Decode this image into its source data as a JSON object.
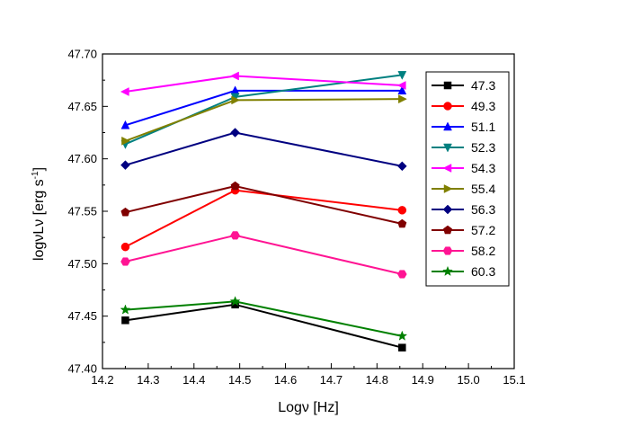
{
  "chart_data": {
    "type": "line",
    "title": "",
    "xlabel": "Logν [Hz]",
    "ylabel_main": "logνLν [erg s",
    "ylabel_sup": "-1",
    "ylabel_end": "]",
    "xlim": [
      14.2,
      15.1
    ],
    "ylim": [
      47.4,
      47.7
    ],
    "xticks": [
      "14.2",
      "14.3",
      "14.4",
      "14.5",
      "14.6",
      "14.7",
      "14.8",
      "14.9",
      "15.0",
      "15.1"
    ],
    "yticks": [
      "47.40",
      "47.45",
      "47.50",
      "47.55",
      "47.60",
      "47.65",
      "47.70"
    ],
    "grid": false,
    "legend_position": "right",
    "x": [
      14.25,
      14.49,
      14.855
    ],
    "series": [
      {
        "name": "47.3",
        "color": "#000000",
        "marker": "square",
        "values": [
          47.446,
          47.461,
          47.42
        ]
      },
      {
        "name": "49.3",
        "color": "#ff0000",
        "marker": "circle",
        "values": [
          47.516,
          47.57,
          47.551
        ]
      },
      {
        "name": "51.1",
        "color": "#0000ff",
        "marker": "triangle-up",
        "values": [
          47.632,
          47.665,
          47.665
        ]
      },
      {
        "name": "52.3",
        "color": "#008080",
        "marker": "triangle-down",
        "values": [
          47.614,
          47.659,
          47.68
        ]
      },
      {
        "name": "54.3",
        "color": "#ff00ff",
        "marker": "triangle-left",
        "values": [
          47.664,
          47.679,
          47.67
        ]
      },
      {
        "name": "55.4",
        "color": "#808000",
        "marker": "triangle-right",
        "values": [
          47.617,
          47.656,
          47.657
        ]
      },
      {
        "name": "56.3",
        "color": "#000080",
        "marker": "diamond",
        "values": [
          47.594,
          47.625,
          47.593
        ]
      },
      {
        "name": "57.2",
        "color": "#800000",
        "marker": "pentagon",
        "values": [
          47.549,
          47.574,
          47.538
        ]
      },
      {
        "name": "58.2",
        "color": "#ff1493",
        "marker": "hexagon",
        "values": [
          47.502,
          47.527,
          47.49
        ]
      },
      {
        "name": "60.3",
        "color": "#008000",
        "marker": "star",
        "values": [
          47.456,
          47.464,
          47.431
        ]
      }
    ]
  }
}
